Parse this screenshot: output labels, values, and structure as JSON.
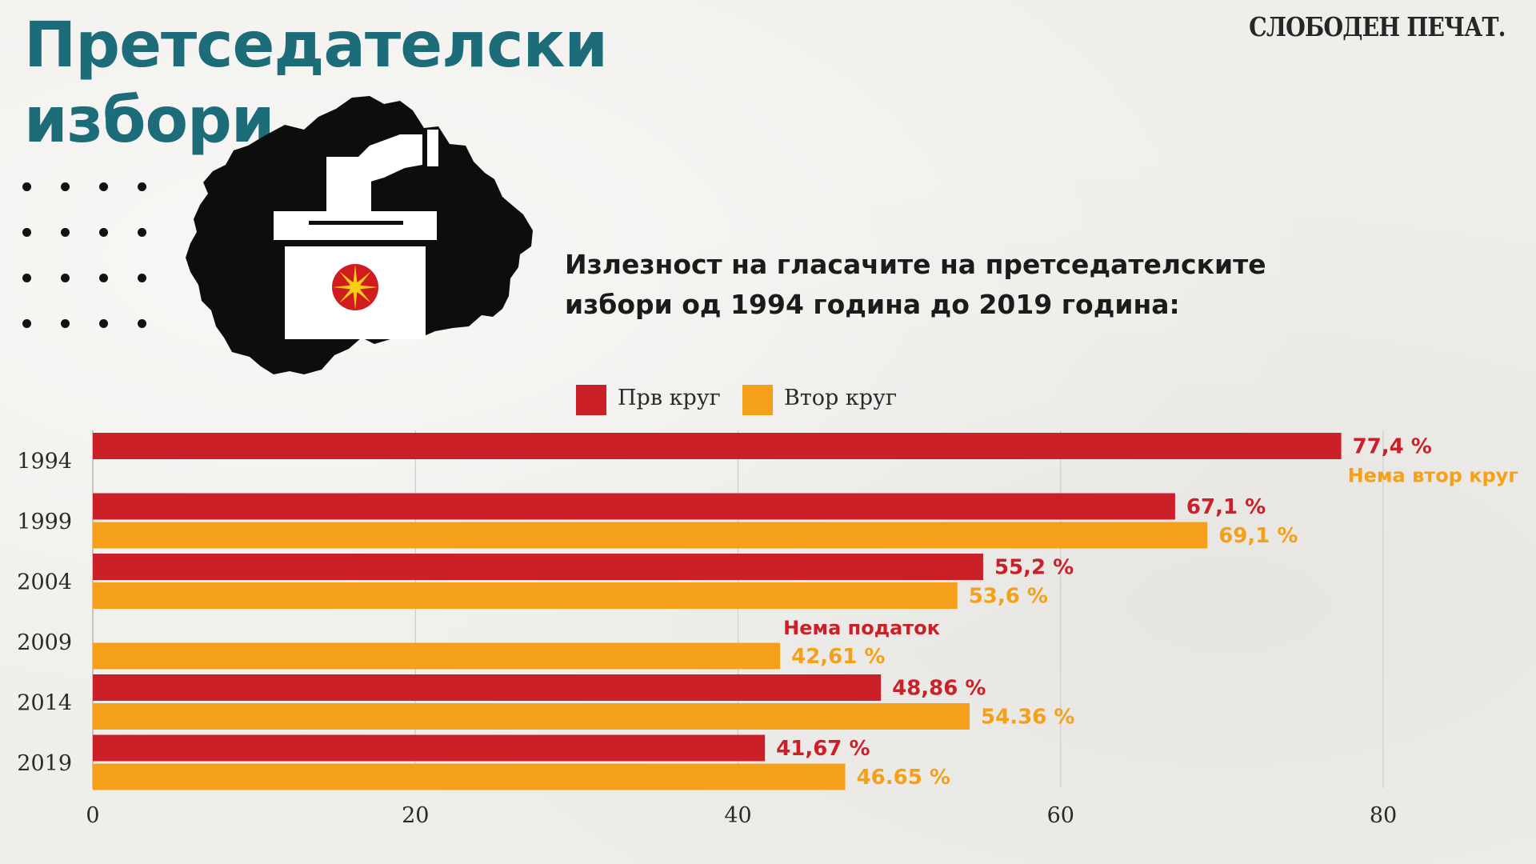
{
  "title": {
    "line1": "Претседателски",
    "line2": "избори"
  },
  "brand": "СЛОБОДЕН ПЕЧАТ.",
  "subtitle": {
    "line1": "Излезност на гласачите на претседателските",
    "line2": "избори од 1994 година до 2019 година:"
  },
  "colors": {
    "first_round": "#cc2029",
    "second_round": "#f5a01a",
    "title": "#1d6c7a",
    "text": "#1b1b1b"
  },
  "icons": {
    "illustration": "ballot-box-macedonia-map",
    "emblem": "macedonian-sun"
  },
  "chart_data": {
    "type": "bar",
    "orientation": "horizontal",
    "categories": [
      "1994",
      "1999",
      "2004",
      "2009",
      "2014",
      "2019"
    ],
    "series": [
      {
        "name": "Прв круг",
        "color": "#cc2029",
        "values": [
          77.4,
          67.1,
          55.2,
          null,
          48.86,
          41.67
        ],
        "labels": [
          "77,4 %",
          "67,1 %",
          "55,2 %",
          "Нема податок",
          "48,86 %",
          "41,67 %"
        ]
      },
      {
        "name": "Втор круг",
        "color": "#f5a01a",
        "values": [
          null,
          69.1,
          53.6,
          42.61,
          54.36,
          46.65
        ],
        "labels": [
          "Нема втор круг",
          "69,1 %",
          "53,6 %",
          "42,61 %",
          "54.36 %",
          "46.65 %"
        ]
      }
    ],
    "xlim": [
      0,
      80
    ],
    "xticks": [
      0,
      20,
      40,
      60,
      80
    ],
    "grid": true,
    "legend": "top-center",
    "xlabel": "",
    "ylabel": ""
  }
}
